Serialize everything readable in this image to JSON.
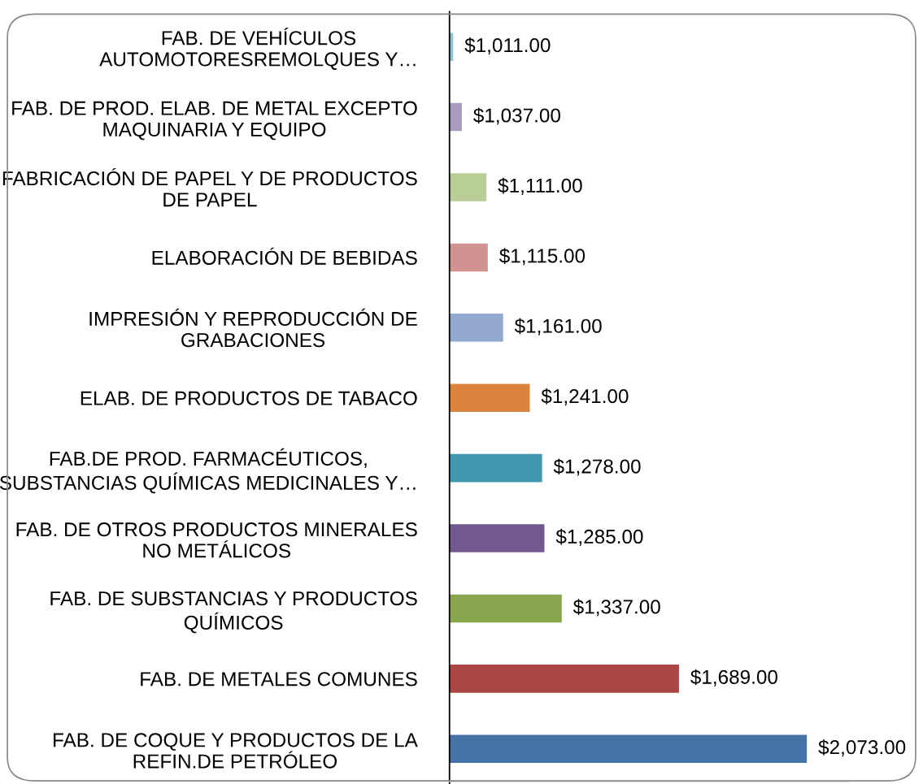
{
  "chart_data": {
    "type": "bar",
    "orientation": "horizontal",
    "categories": [
      "FAB. DE VEHÍCULOS\nAUTOMOTORESREMOLQUES Y…",
      "FAB. DE PROD. ELAB. DE METAL EXCEPTO\nMAQUINARIA Y EQUIPO",
      "FABRICACIÓN DE PAPEL Y DE PRODUCTOS\nDE PAPEL",
      "ELABORACIÓN DE BEBIDAS",
      "IMPRESIÓN Y REPRODUCCIÓN DE\nGRABACIONES",
      "ELAB. DE PRODUCTOS DE TABACO",
      "FAB.DE PROD. FARMACÉUTICOS,\nSUBSTANCIAS QUÍMICAS MEDICINALES Y…",
      "FAB. DE OTROS PRODUCTOS MINERALES\nNO METÁLICOS",
      "FAB. DE SUBSTANCIAS Y PRODUCTOS\nQUÍMICOS",
      "FAB. DE METALES COMUNES",
      "FAB. DE COQUE Y PRODUCTOS DE LA\nREFIN.DE PETRÓLEO"
    ],
    "values": [
      1011,
      1037,
      1111,
      1115,
      1161,
      1241,
      1278,
      1285,
      1337,
      1689,
      2073
    ],
    "value_labels": [
      "$1,011.00",
      "$1,037.00",
      "$1,111.00",
      "$1,115.00",
      "$1,161.00",
      "$1,241.00",
      "$1,278.00",
      "$1,285.00",
      "$1,337.00",
      "$1,689.00",
      "$2,073.00"
    ],
    "colors": [
      "#91c3d5",
      "#a99bbd",
      "#b9cd96",
      "#d19392",
      "#93a9cf",
      "#db843d",
      "#4198af",
      "#71588f",
      "#89a54e",
      "#aa4643",
      "#4572a7"
    ],
    "xlim": [
      1000,
      2200
    ],
    "tick_labels": "y",
    "grid": false,
    "legend": false
  }
}
